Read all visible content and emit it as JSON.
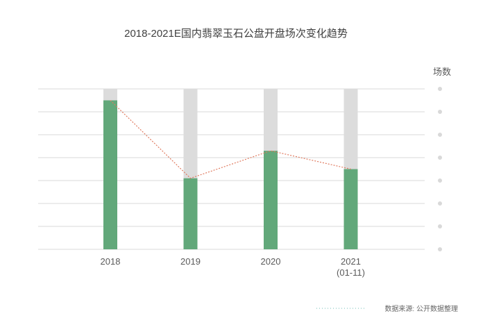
{
  "chart_data": {
    "type": "bar",
    "title": "2018-2021E国内翡翠玉石公盘开盘场次变化趋势",
    "ylabel": "场数",
    "categories": [
      "2018",
      "2019",
      "2020",
      "2021\n(01-11)"
    ],
    "series": [
      {
        "name": "",
        "values": [
          65,
          31,
          43,
          35
        ]
      }
    ],
    "total_bar_value": 70,
    "trend_line": true,
    "ylim": [
      0,
      70
    ],
    "y_tick_count": 7,
    "y_tick_labels_visible": false,
    "grid": true,
    "colors": {
      "bar": "#62a87a",
      "bar_background": "#dcdcdc",
      "trend_line": "#e07a5f",
      "grid": "#d9d9d9",
      "tick_dot": "#d9d9d9",
      "source_dots": "#8ec9c4"
    }
  },
  "source_note": "数据来源: 公开数据整理"
}
